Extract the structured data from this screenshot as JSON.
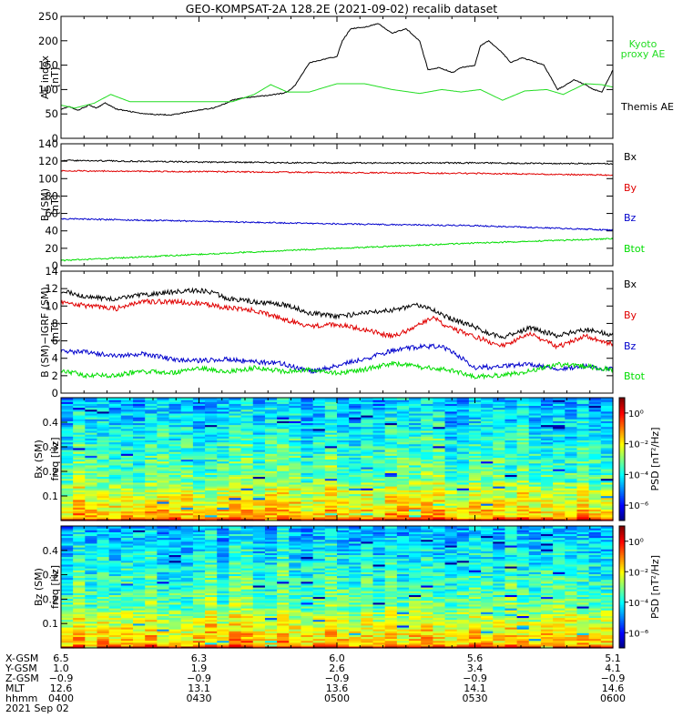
{
  "title": "GEO-KOMPSAT-2A 128.2E (2021-09-02) recalib dataset",
  "colors": {
    "black": "#000000",
    "red": "#e00000",
    "green": "#00dd00",
    "blue": "#0000cc",
    "kyoto": "#22dd22"
  },
  "chart_data": [
    {
      "type": "line",
      "ylabel": "AE index [nT]",
      "ylim": [
        0,
        250
      ],
      "yticks": [
        0,
        50,
        100,
        150,
        200,
        250
      ],
      "x_hours": [
        4.0,
        6.0
      ],
      "series": [
        {
          "name": "Themis AE",
          "color": "black",
          "x": [
            4.0,
            4.03,
            4.06,
            4.1,
            4.13,
            4.16,
            4.2,
            4.3,
            4.4,
            4.5,
            4.55,
            4.6,
            4.62,
            4.65,
            4.7,
            4.75,
            4.8,
            4.82,
            4.85,
            4.9,
            5.0,
            5.02,
            5.05,
            5.1,
            5.15,
            5.2,
            5.25,
            5.3,
            5.33,
            5.37,
            5.42,
            5.45,
            5.5,
            5.52,
            5.55,
            5.6,
            5.63,
            5.67,
            5.7,
            5.75,
            5.8,
            5.83,
            5.86,
            5.9,
            5.93,
            5.96,
            6.0
          ],
          "y": [
            60,
            65,
            57,
            68,
            62,
            73,
            60,
            50,
            48,
            58,
            62,
            72,
            78,
            82,
            85,
            88,
            92,
            95,
            110,
            155,
            168,
            200,
            225,
            228,
            235,
            215,
            225,
            200,
            140,
            145,
            135,
            145,
            150,
            190,
            200,
            175,
            155,
            165,
            160,
            150,
            100,
            110,
            120,
            110,
            100,
            95,
            140
          ]
        },
        {
          "name": "Kyoto proxy AE",
          "color": "kyoto",
          "x": [
            4.0,
            4.05,
            4.12,
            4.18,
            4.25,
            4.35,
            4.45,
            4.55,
            4.62,
            4.7,
            4.76,
            4.82,
            4.9,
            5.0,
            5.1,
            5.2,
            5.3,
            5.38,
            5.45,
            5.52,
            5.6,
            5.68,
            5.76,
            5.82,
            5.9,
            5.96,
            6.0
          ],
          "y": [
            68,
            62,
            72,
            90,
            75,
            75,
            75,
            75,
            75,
            90,
            110,
            95,
            95,
            112,
            112,
            100,
            92,
            100,
            95,
            100,
            78,
            97,
            100,
            90,
            112,
            110,
            105
          ]
        }
      ],
      "labels": [
        "Kyoto proxy AE",
        "Themis AE"
      ]
    },
    {
      "type": "line",
      "ylabel": "B (SM) [nT]",
      "ylim": [
        0,
        140
      ],
      "yticks": [
        0,
        20,
        40,
        60,
        80,
        100,
        120,
        140
      ],
      "series": [
        {
          "name": "Bx",
          "color": "black",
          "x": [
            4.0,
            4.5,
            5.0,
            5.5,
            6.0
          ],
          "y": [
            121,
            119,
            118,
            118,
            117
          ]
        },
        {
          "name": "By",
          "color": "red",
          "x": [
            4.0,
            4.5,
            5.0,
            5.5,
            6.0
          ],
          "y": [
            109,
            108,
            107,
            106,
            104
          ]
        },
        {
          "name": "Bz",
          "color": "blue",
          "x": [
            4.0,
            4.5,
            5.0,
            5.5,
            6.0
          ],
          "y": [
            54,
            51,
            48,
            46,
            41
          ]
        },
        {
          "name": "Btot",
          "color": "green",
          "x": [
            4.0,
            4.5,
            5.0,
            5.5,
            6.0
          ],
          "y": [
            6,
            13,
            20,
            26,
            31
          ]
        }
      ],
      "labels": [
        "Bx",
        "By",
        "Bz",
        "Btot"
      ]
    },
    {
      "type": "line",
      "ylabel": "B (SM)−IGRF (SM) [nT]",
      "ylim": [
        0,
        14
      ],
      "yticks": [
        0,
        2,
        4,
        6,
        8,
        10,
        12,
        14
      ],
      "series": [
        {
          "name": "Bx",
          "color": "black",
          "x": [
            4.0,
            4.1,
            4.2,
            4.3,
            4.4,
            4.5,
            4.55,
            4.6,
            4.7,
            4.8,
            4.85,
            4.9,
            5.0,
            5.1,
            5.2,
            5.3,
            5.35,
            5.4,
            5.5,
            5.55,
            5.6,
            5.7,
            5.8,
            5.9,
            6.0
          ],
          "y": [
            11.8,
            11,
            10.8,
            11.3,
            11.6,
            11.8,
            11.5,
            10.9,
            10.5,
            10.2,
            9.8,
            9.2,
            8.8,
            9.2,
            9.5,
            10.1,
            9.6,
            8.7,
            7.6,
            6.9,
            6.4,
            7.5,
            6.6,
            7.3,
            6.7
          ]
        },
        {
          "name": "By",
          "color": "red",
          "x": [
            4.0,
            4.1,
            4.2,
            4.3,
            4.4,
            4.5,
            4.6,
            4.7,
            4.8,
            4.85,
            4.9,
            5.0,
            5.1,
            5.2,
            5.25,
            5.35,
            5.4,
            5.5,
            5.55,
            5.6,
            5.7,
            5.8,
            5.9,
            6.0
          ],
          "y": [
            10.4,
            10,
            9.7,
            10.5,
            10.5,
            10.3,
            9.8,
            9.5,
            8.6,
            8.1,
            7.7,
            7.9,
            7.3,
            6.5,
            7.1,
            8.8,
            7.6,
            6.5,
            5.9,
            5.4,
            6.8,
            5.3,
            6.6,
            5.6
          ]
        },
        {
          "name": "Bz",
          "color": "blue",
          "x": [
            4.0,
            4.1,
            4.2,
            4.3,
            4.4,
            4.5,
            4.6,
            4.7,
            4.8,
            4.9,
            4.95,
            5.0,
            5.1,
            5.2,
            5.3,
            5.38,
            5.45,
            5.5,
            5.6,
            5.7,
            5.8,
            5.9,
            6.0
          ],
          "y": [
            4.8,
            4.7,
            4.2,
            4.5,
            3.9,
            3.7,
            3.9,
            3.6,
            3.4,
            2.5,
            2.7,
            3.2,
            3.9,
            4.9,
            5.3,
            5.4,
            4.1,
            2.9,
            3.1,
            3.3,
            2.8,
            3.1,
            2.7
          ]
        },
        {
          "name": "Btot",
          "color": "green",
          "x": [
            4.0,
            4.1,
            4.2,
            4.3,
            4.4,
            4.5,
            4.6,
            4.7,
            4.8,
            4.9,
            5.0,
            5.1,
            5.2,
            5.3,
            5.4,
            5.5,
            5.6,
            5.7,
            5.8,
            5.9,
            6.0
          ],
          "y": [
            2.6,
            2,
            2.1,
            2.5,
            2.3,
            2.9,
            2.4,
            2.9,
            2.5,
            2.7,
            2.3,
            2.7,
            3.4,
            3,
            2.7,
            1.9,
            2.1,
            2.5,
            3.3,
            3.1,
            2.7
          ]
        }
      ],
      "labels": [
        "Bx",
        "By",
        "Bz",
        "Btot"
      ]
    },
    {
      "type": "heatmap",
      "ylabel_1": "Bx (SM)",
      "ylabel_2": "freq [Hz]",
      "yticks": [
        0.1,
        0.2,
        0.3,
        0.4
      ],
      "ylim": [
        0,
        0.5
      ],
      "colorbar": {
        "label": "PSD [nT²/Hz]",
        "ticks": [
          0,
          -2,
          -4,
          -6
        ],
        "tick_text": [
          "10⁰",
          "10⁻²",
          "10⁻⁴",
          "10⁻⁶"
        ],
        "log_range": [
          -7,
          1
        ]
      }
    },
    {
      "type": "heatmap",
      "ylabel_1": "Bz (SM)",
      "ylabel_2": "freq [Hz]",
      "yticks": [
        0.1,
        0.2,
        0.3,
        0.4
      ],
      "ylim": [
        0,
        0.5
      ],
      "colorbar": {
        "label": "PSD [nT²/Hz]",
        "ticks": [
          0,
          -2,
          -4,
          -6
        ],
        "tick_text": [
          "10⁰",
          "10⁻²",
          "10⁻⁴",
          "10⁻⁶"
        ],
        "log_range": [
          -7,
          1
        ]
      }
    }
  ],
  "ephemeris": {
    "row_labels": [
      "X-GSM",
      "Y-GSM",
      "Z-GSM",
      "MLT",
      "hhmm"
    ],
    "columns": [
      [
        "6.5",
        "1.0",
        "−0.9",
        "12.6",
        "0400"
      ],
      [
        "6.3",
        "1.9",
        "−0.9",
        "13.1",
        "0430"
      ],
      [
        "6.0",
        "2.6",
        "−0.9",
        "13.6",
        "0500"
      ],
      [
        "5.6",
        "3.4",
        "−0.9",
        "14.1",
        "0530"
      ],
      [
        "5.1",
        "4.1",
        "−0.9",
        "14.6",
        "0600"
      ]
    ],
    "date": "2021 Sep 02"
  }
}
